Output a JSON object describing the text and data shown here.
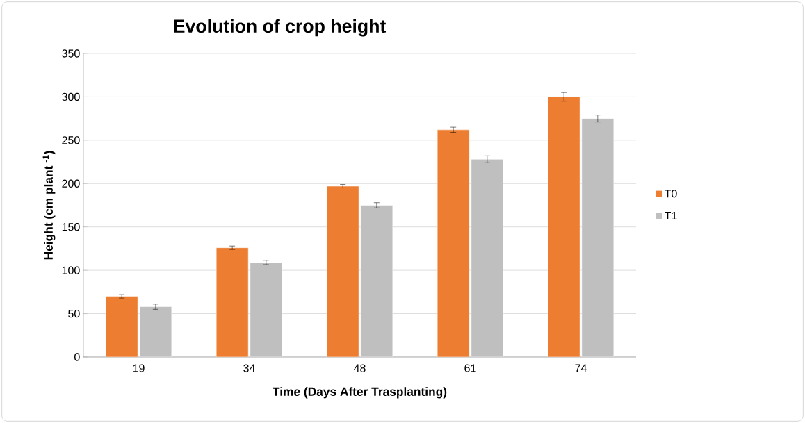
{
  "chart_data": {
    "type": "bar",
    "title": "Evolution of crop height",
    "xlabel": "Time (Days After Trasplanting)",
    "ylabel": "Height (cm plant $^{-1}$)",
    "categories": [
      "19",
      "34",
      "48",
      "61",
      "74"
    ],
    "series": [
      {
        "name": "T0",
        "color": "#ed7d31",
        "values": [
          70,
          126,
          197,
          262,
          300
        ],
        "errors": [
          2,
          2,
          2,
          3,
          5
        ]
      },
      {
        "name": "T1",
        "color": "#bfbfbf",
        "values": [
          58,
          109,
          175,
          228,
          275
        ],
        "errors": [
          3,
          2.5,
          3,
          4,
          4
        ]
      }
    ],
    "ylim": [
      0,
      350
    ],
    "yticks": [
      0,
      50,
      100,
      150,
      200,
      250,
      300,
      350
    ],
    "grid": "y",
    "legend": "right"
  }
}
